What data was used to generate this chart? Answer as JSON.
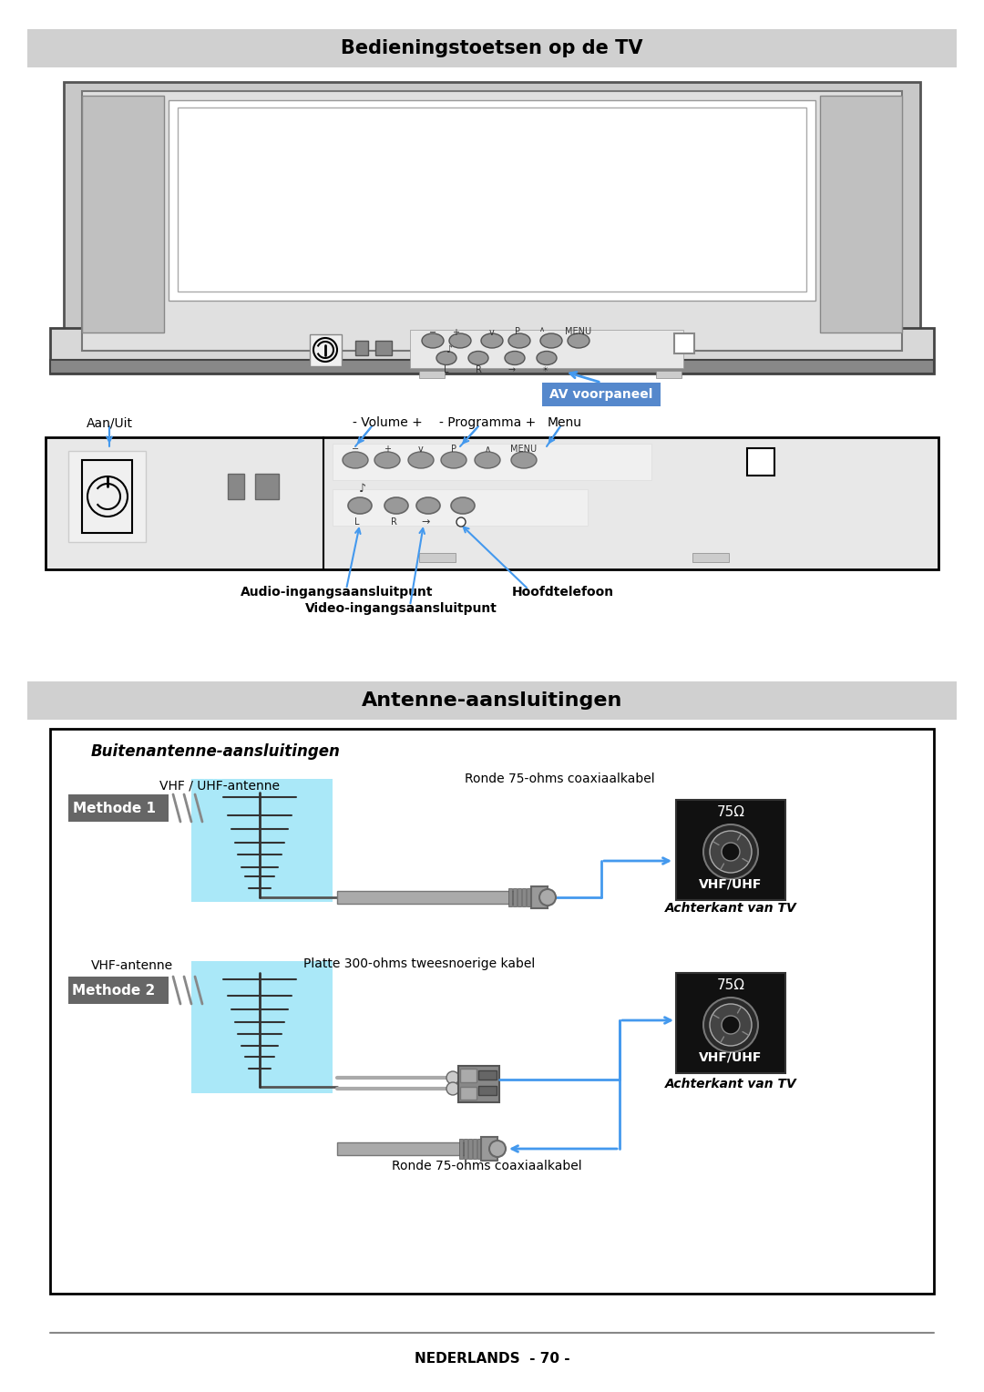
{
  "title1": "Bedieningstoetsen op de TV",
  "title2": "Antenne-aansluitingen",
  "footer_text": "NEDERLANDS  - 70 -",
  "av_label": "AV voorpaneel",
  "aan_uit_label": "Aan/Uit",
  "volume_label": "- Volume +",
  "programma_label": "- Programma +",
  "menu_label": "Menu",
  "audio_label": "Audio-ingangsaansluitpunt",
  "video_label": "Video-ingangsaansluitpunt",
  "hoofdtelefoon_label": "Hoofdtelefoon",
  "buiten_title": "Buitenantenne-aansluitingen",
  "methode1_label": "Methode 1",
  "methode2_label": "Methode 2",
  "vhf_uhf_label": "VHF / UHF-antenne",
  "vhf_label": "VHF-antenne",
  "ronde_kabel_label1": "Ronde 75-ohms coaxiaalkabel",
  "ronde_kabel_label2": "Ronde 75-ohms coaxiaalkabel",
  "platte_kabel_label": "Platte 300-ohms tweesnoerige kabel",
  "achterkant_label1": "Achterkant van TV",
  "achterkant_label2": "Achterkant van TV",
  "vhf_uhf_connector": "VHF/UHF",
  "ohm_label": "75Ω",
  "header_bg": "#d0d0d0",
  "av_button_bg": "#5588cc",
  "av_button_text": "#ffffff",
  "methode_bg": "#666666",
  "methode_text": "#ffffff",
  "antenna_bg": "#aae8f8",
  "connector_bg": "#111111",
  "connector_text": "#ffffff",
  "blue_line": "#4499ee",
  "page_bg": "#ffffff",
  "tv_outer": "#cccccc",
  "tv_screen_frame": "#bbbbbb",
  "tv_screen": "#ffffff",
  "panel_bg": "#e8e8e8",
  "button_color": "#999999"
}
